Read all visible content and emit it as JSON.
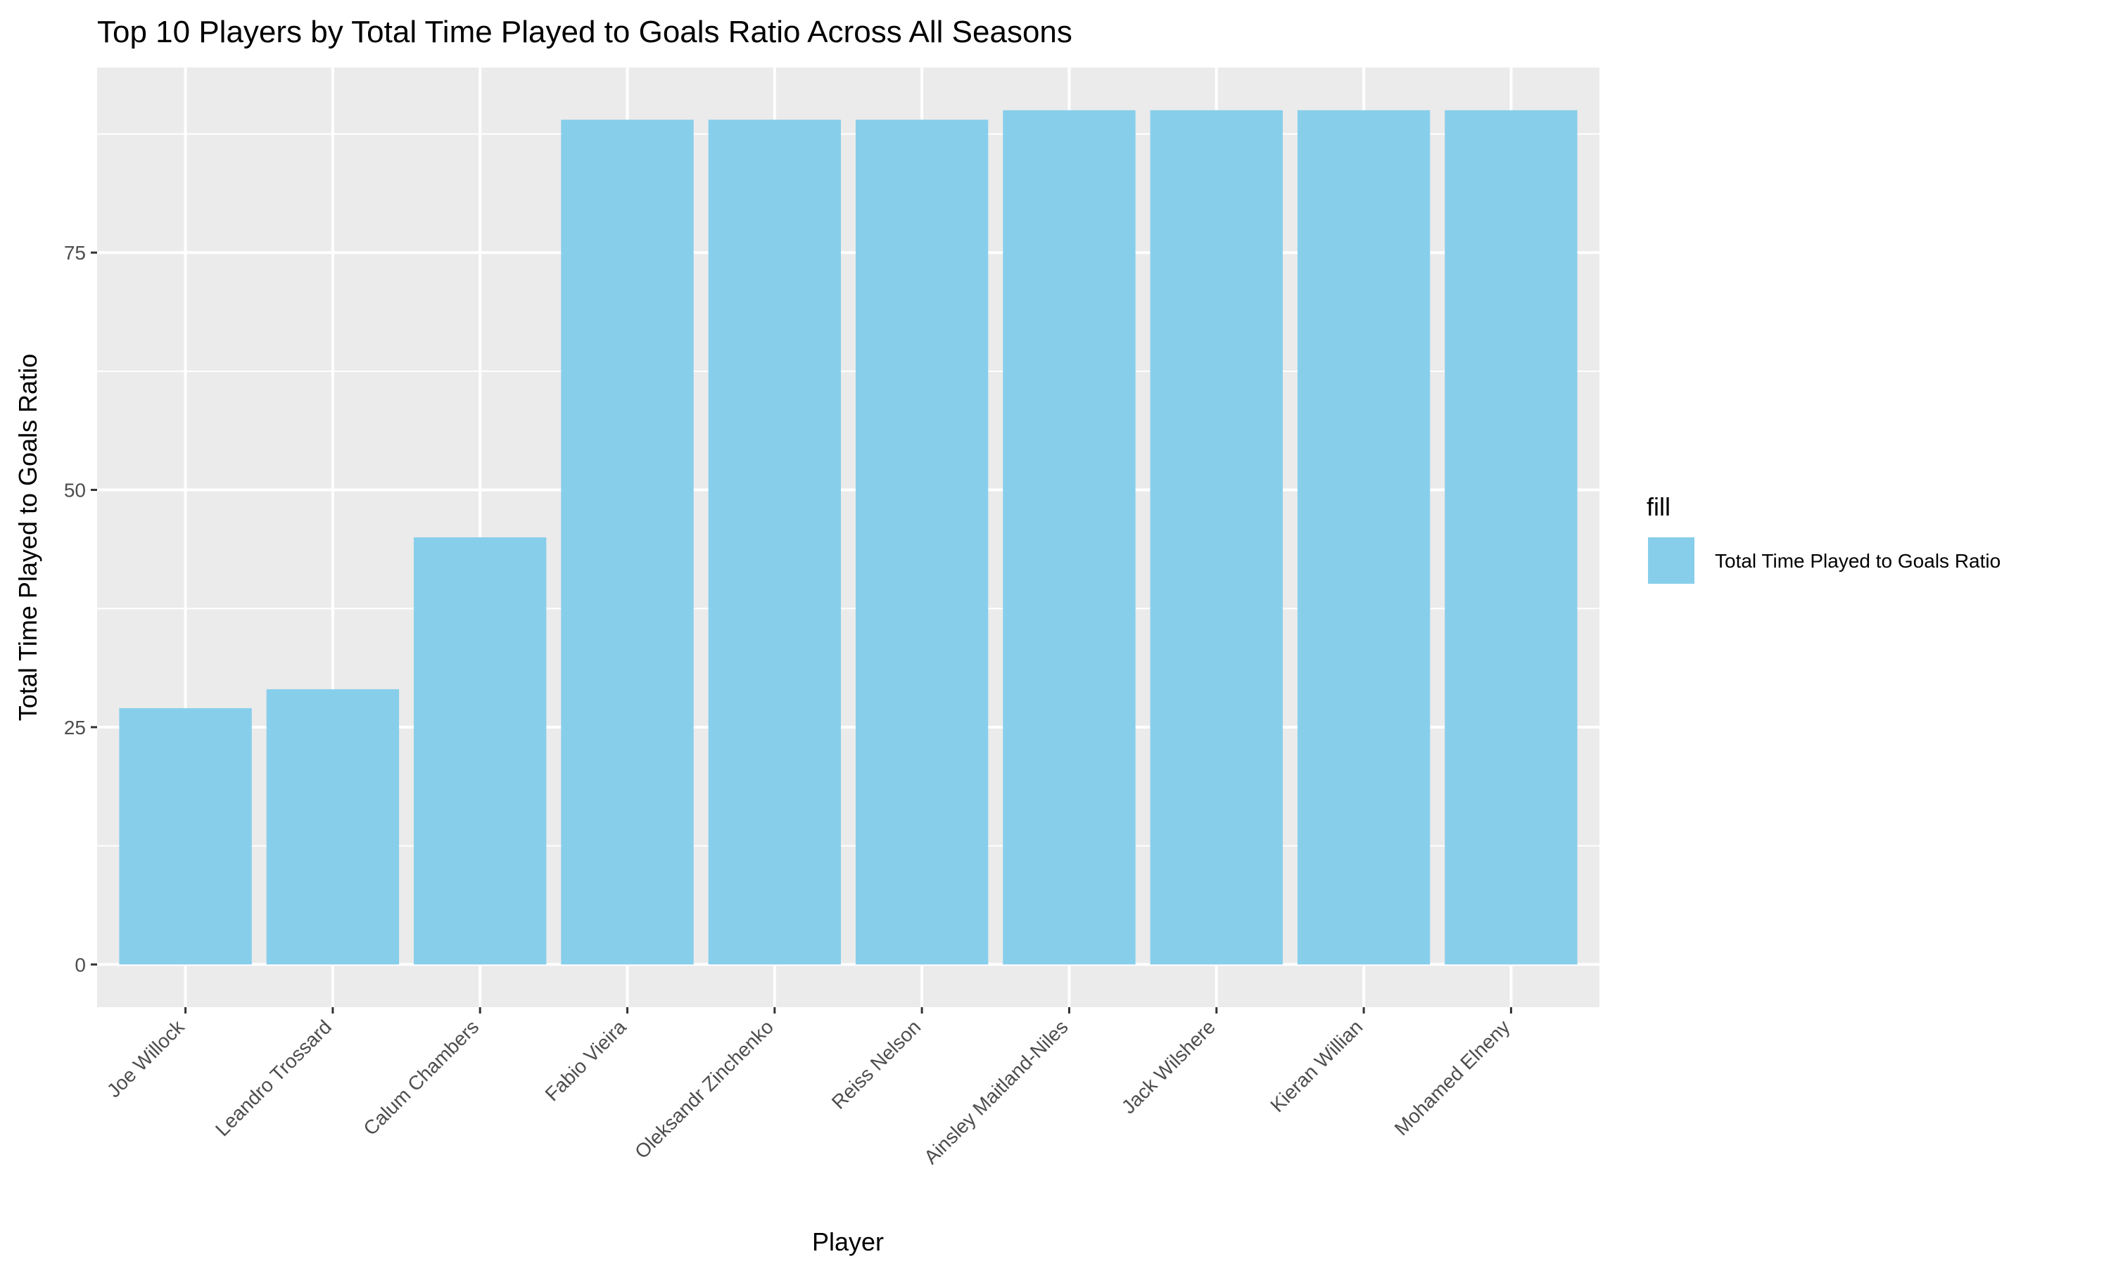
{
  "chart_data": {
    "type": "bar",
    "title": "Top 10 Players by Total Time Played to Goals Ratio Across All Seasons",
    "xlabel": "Player",
    "ylabel": "Total Time Played to Goals Ratio",
    "categories": [
      "Joe Willock",
      "Leandro Trossard",
      "Calum Chambers",
      "Fabio Vieira",
      "Oleksandr Zinchenko",
      "Reiss Nelson",
      "Ainsley Maitland-Niles",
      "Jack Wilshere",
      "Kieran Willian",
      "Mohamed Elneny"
    ],
    "values": [
      27,
      29,
      45,
      89,
      89,
      89,
      90,
      90,
      90,
      90
    ],
    "ylim": [
      -4.5,
      94.5
    ],
    "yticks": [
      0,
      25,
      50,
      75
    ],
    "ytick_labels": [
      "0",
      "25",
      "50",
      "75"
    ],
    "grid": true,
    "legend": {
      "title": "fill",
      "entries": [
        "Total Time Played to Goals Ratio"
      ],
      "placement": "right"
    },
    "colors": {
      "bar": "#87ceeb",
      "panel": "#ebebeb",
      "grid": "#ffffff"
    }
  }
}
